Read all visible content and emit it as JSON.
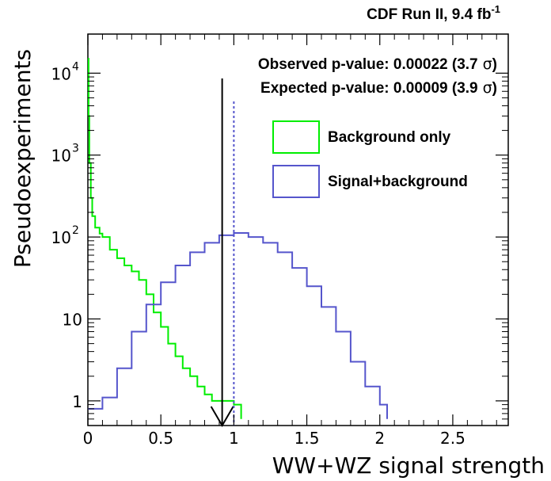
{
  "chart_data": {
    "type": "line",
    "title": "CDF Run II, 9.4 fb",
    "title_superscript": "-1",
    "xlabel": "WW+WZ signal strength",
    "ylabel": "Pseudoexperiments",
    "xlim": [
      0,
      2.88
    ],
    "ylim": [
      0.5,
      30000
    ],
    "yscale": "log",
    "x_ticks": [
      {
        "value": 0,
        "label": "0"
      },
      {
        "value": 0.5,
        "label": "0.5"
      },
      {
        "value": 1,
        "label": "1"
      },
      {
        "value": 1.5,
        "label": "1.5"
      },
      {
        "value": 2,
        "label": "2"
      },
      {
        "value": 2.5,
        "label": "2.5"
      }
    ],
    "y_ticks": [
      {
        "value": 1,
        "label": "1"
      },
      {
        "value": 10,
        "label": "10"
      },
      {
        "value": 100,
        "label": "10",
        "exponent": "2"
      },
      {
        "value": 1000,
        "label": "10",
        "exponent": "3"
      },
      {
        "value": 10000,
        "label": "10",
        "exponent": "4"
      }
    ],
    "series": [
      {
        "name": "Background only",
        "color": "#00ee00",
        "x": [
          0.0,
          0.005,
          0.01,
          0.02,
          0.03,
          0.05,
          0.08,
          0.1,
          0.15,
          0.2,
          0.25,
          0.3,
          0.35,
          0.4,
          0.45,
          0.5,
          0.55,
          0.6,
          0.65,
          0.7,
          0.75,
          0.8,
          0.85,
          0.9,
          0.95,
          1.0,
          1.05
        ],
        "values": [
          15000,
          3000,
          800,
          300,
          180,
          130,
          110,
          100,
          70,
          55,
          45,
          38,
          30,
          20,
          12,
          8,
          5,
          3.5,
          2.5,
          2,
          1.5,
          1.2,
          1,
          1,
          1,
          0.9,
          0.6
        ]
      },
      {
        "name": "Signal+background",
        "color": "#5555cc",
        "x": [
          0.0,
          0.1,
          0.2,
          0.3,
          0.4,
          0.5,
          0.6,
          0.7,
          0.8,
          0.9,
          1.0,
          1.1,
          1.2,
          1.3,
          1.4,
          1.5,
          1.6,
          1.7,
          1.8,
          1.9,
          2.0,
          2.05
        ],
        "values": [
          0.8,
          1.1,
          2.5,
          7,
          15,
          28,
          45,
          65,
          85,
          105,
          112,
          100,
          85,
          65,
          42,
          25,
          14,
          7,
          3,
          1.5,
          0.9,
          0.6
        ]
      }
    ],
    "markers": [
      {
        "name": "observed",
        "x": 0.92,
        "style": "solid",
        "color": "#000000"
      },
      {
        "name": "expected",
        "x": 1.0,
        "style": "dotted",
        "color": "#5555cc"
      }
    ],
    "annotations": [
      {
        "text": "Observed p-value: 0.00022 (3.7",
        "sigma": "σ",
        "close": ")"
      },
      {
        "text": "Expected p-value: 0.00009 (3.9",
        "sigma": "σ",
        "close": ")"
      }
    ],
    "legend": {
      "position": "top-right",
      "entries": [
        {
          "label": "Background only",
          "color": "#00ee00"
        },
        {
          "label": "Signal+background",
          "color": "#5555cc"
        }
      ]
    }
  }
}
